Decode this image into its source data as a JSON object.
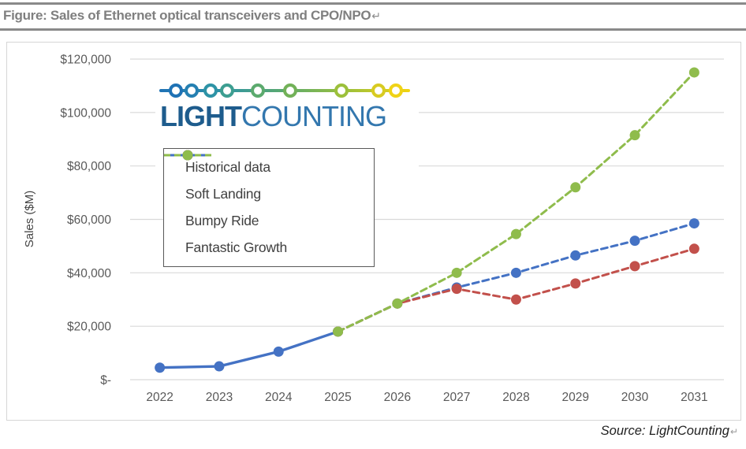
{
  "header": {
    "title": "Figure: Sales of Ethernet optical transceivers and CPO/NPO",
    "return_mark": "↵"
  },
  "footer": {
    "source": "Source: LightCounting",
    "return_mark": "↵"
  },
  "logo": {
    "text_bold": "LIGHT",
    "text_regular": "COUNTING",
    "text_bold_color": "#1e5c8d",
    "text_regular_color": "#3377ae",
    "ring_centers_x": [
      26,
      46,
      70,
      91,
      130,
      171,
      236,
      283,
      305
    ],
    "ring_colors": [
      "#1f72b5",
      "#2580b2",
      "#2d93a6",
      "#3d9e91",
      "#5caa6e",
      "#72b158",
      "#9cc03b",
      "#d8cb21",
      "#f0d316"
    ],
    "line_gradient": [
      "#1f72b5",
      "#2d93a6",
      "#5caa6e",
      "#9cc03b",
      "#f2d411"
    ]
  },
  "chart_data": {
    "type": "line",
    "title": "",
    "xlabel": "",
    "ylabel": "Sales ($M)",
    "categories": [
      "2022",
      "2023",
      "2024",
      "2025",
      "2026",
      "2027",
      "2028",
      "2029",
      "2030",
      "2031"
    ],
    "y_tick_labels": [
      "$120,000",
      "$100,000",
      "$80,000",
      "$60,000",
      "$40,000",
      "$20,000",
      "$-"
    ],
    "y_tick_values": [
      120000,
      100000,
      80000,
      60000,
      40000,
      20000,
      0
    ],
    "ylim": [
      0,
      120000
    ],
    "grid": true,
    "gridline_color": "#d9d9d9",
    "axis_text_color": "#595959",
    "legend_position": "inside-upper-left",
    "series": [
      {
        "name": "Historical data",
        "color": "#4472c4",
        "style": "solid",
        "values": [
          4500,
          5000,
          10500,
          18000,
          null,
          null,
          null,
          null,
          null,
          null
        ]
      },
      {
        "name": "Soft Landing",
        "color": "#4472c4",
        "style": "dashed",
        "values": [
          null,
          null,
          null,
          18000,
          28500,
          34500,
          40000,
          46500,
          52000,
          58500
        ]
      },
      {
        "name": "Bumpy Ride",
        "color": "#c2504b",
        "style": "dashed",
        "values": [
          null,
          null,
          null,
          18000,
          28500,
          34000,
          30000,
          36000,
          42500,
          49000
        ]
      },
      {
        "name": "Fantastic Growth",
        "color": "#8fbc4c",
        "style": "dashed",
        "values": [
          null,
          null,
          null,
          18000,
          28500,
          40000,
          54500,
          72000,
          91500,
          115000
        ]
      }
    ]
  }
}
